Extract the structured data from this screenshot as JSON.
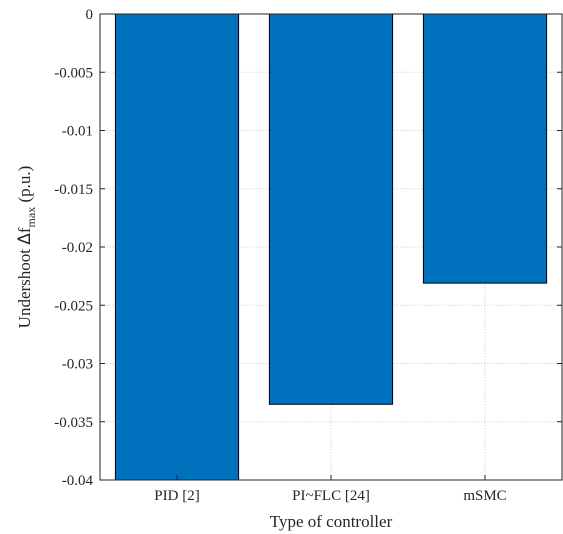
{
  "chart_data": {
    "type": "bar",
    "categories": [
      "PID [2]",
      "PI~FLC [24]",
      "mSMC"
    ],
    "values": [
      -0.04,
      -0.0335,
      -0.0231
    ],
    "xlabel": "Type of controller",
    "ylabel": {
      "prefix": "Undershoot ",
      "delta": "Δ",
      "symbol": "f",
      "subscript": "max",
      "suffix": " (p.u.)"
    },
    "ylim": [
      -0.04,
      0
    ],
    "yticks": [
      0,
      -0.005,
      -0.01,
      -0.015,
      -0.02,
      -0.025,
      -0.03,
      -0.035,
      -0.04
    ],
    "ytick_labels": [
      "0",
      "-0.005",
      "-0.01",
      "-0.015",
      "-0.02",
      "-0.025",
      "-0.03",
      "-0.035",
      "-0.04"
    ],
    "grid": true,
    "bar_color": "#0072BD",
    "bar_edge_color": "#000000",
    "grid_color": "#d9d9d9"
  }
}
